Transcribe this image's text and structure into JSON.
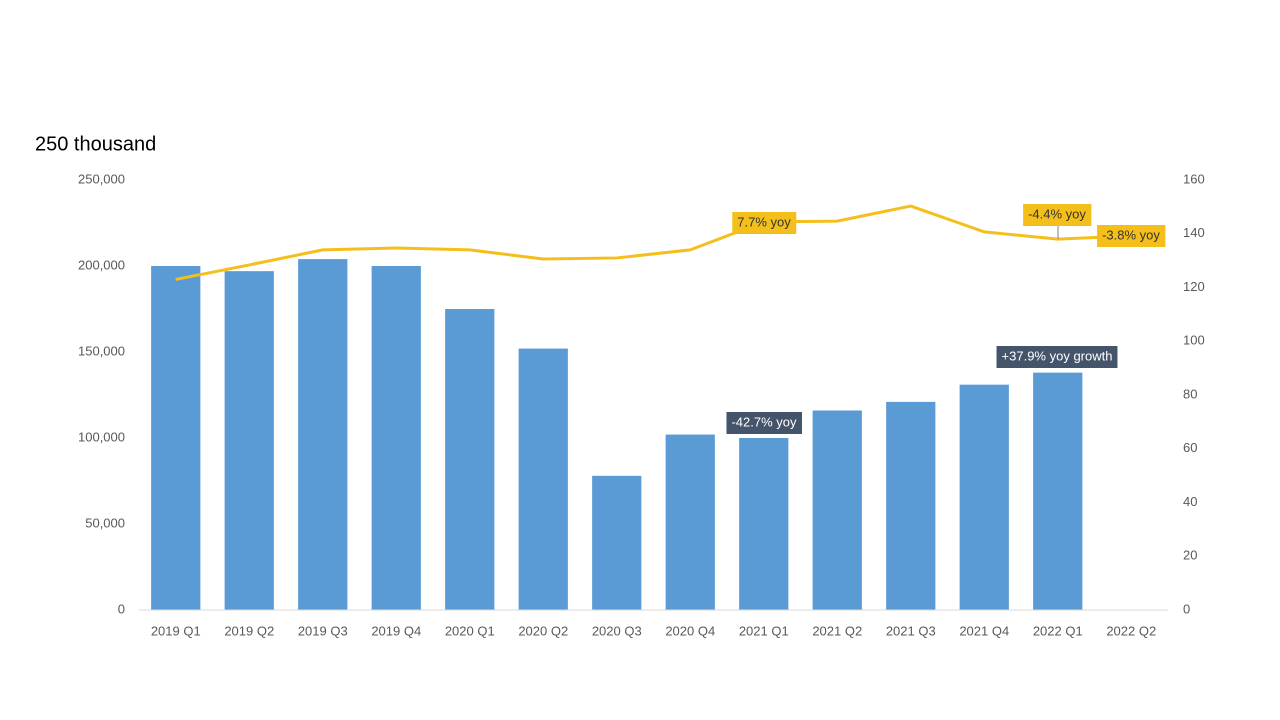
{
  "chart_data": {
    "type": "bar",
    "title": "250 thousand",
    "categories": [
      "2019 Q1",
      "2019 Q2",
      "2019 Q3",
      "2019 Q4",
      "2020 Q1",
      "2020 Q2",
      "2020 Q3",
      "2020 Q4",
      "2021 Q1",
      "2021 Q2",
      "2021 Q3",
      "2021 Q4",
      "2022 Q1",
      "2022 Q2"
    ],
    "series": [
      {
        "type": "bar",
        "color": "#5b9bd5",
        "values": [
          200000,
          197000,
          204000,
          200000,
          175000,
          152000,
          78000,
          102000,
          100000,
          116000,
          121000,
          131000,
          138000,
          null
        ]
      },
      {
        "type": "line",
        "axis": "y2",
        "color": "#f5bf1b",
        "values": [
          123,
          128.4,
          134,
          134.7,
          134,
          130.6,
          131,
          134,
          144.4,
          144.7,
          150.3,
          140.7,
          138,
          139.2
        ]
      }
    ],
    "ylim": [
      0,
      250000
    ],
    "yticks": [
      0,
      {
        "value": 50000,
        "label": "50,000"
      },
      {
        "value": 100000,
        "label": "100,000"
      },
      {
        "value": 150000,
        "label": "150,000"
      },
      {
        "value": 200000,
        "label": "200,000"
      },
      {
        "value": 250000,
        "label": "250,000"
      }
    ],
    "y2lim": [
      0,
      160
    ],
    "y2ticks": [
      0,
      20,
      40,
      60,
      80,
      100,
      120,
      140,
      160
    ],
    "annotations": [
      {
        "text": "7.7% yoy",
        "color": "#f5bf1b"
      },
      {
        "text": "-4.4% yoy",
        "color": "#f5bf1b"
      },
      {
        "text": "-3.8% yoy",
        "color": "#f5bf1b"
      },
      {
        "text": "-42.7% yoy",
        "color": "#44546a"
      },
      {
        "text": "+37.9% yoy growth",
        "color": "#44546a"
      }
    ]
  }
}
